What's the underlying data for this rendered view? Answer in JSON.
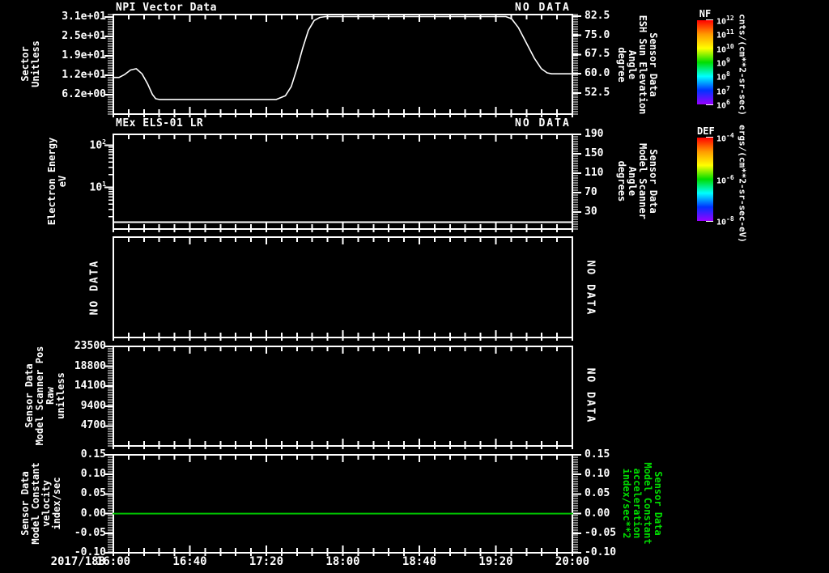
{
  "colors": {
    "background": "#000000",
    "foreground": "#ffffff",
    "accent_green": "#00dd00",
    "trace_green": "#00c000"
  },
  "xaxis": {
    "date_label": "2017/188",
    "start_hour": 16,
    "end_hour": 20,
    "tick_labels": [
      "16:00",
      "16:40",
      "17:20",
      "18:00",
      "18:40",
      "19:20",
      "20:00"
    ],
    "minor_per_major": 5
  },
  "chart_data": [
    {
      "panel": 1,
      "type": "line",
      "title": "NPI Vector Data",
      "status": "NO DATA",
      "left_label": "Sector\nUnitless",
      "right_label": "Sensor Data\nESH Sun Elevation\nAngle\ndegree",
      "left_axis": {
        "min": 0,
        "max": 31.78,
        "ticks": [
          {
            "v": 6.2,
            "t": "6.2e+00"
          },
          {
            "v": 12.4,
            "t": "1.2e+01"
          },
          {
            "v": 18.6,
            "t": "1.9e+01"
          },
          {
            "v": 24.8,
            "t": "2.5e+01"
          },
          {
            "v": 31.0,
            "t": "3.1e+01"
          }
        ]
      },
      "right_axis": {
        "min": 44.3,
        "max": 83.1,
        "ticks": [
          {
            "v": 52.5,
            "t": "52.5"
          },
          {
            "v": 60.0,
            "t": "60.0"
          },
          {
            "v": 67.5,
            "t": "67.5"
          },
          {
            "v": 75.0,
            "t": "75.0"
          },
          {
            "v": 82.5,
            "t": "82.5"
          }
        ]
      },
      "series": [
        {
          "name": "ESH Sun Elevation Angle",
          "axis": "right",
          "color": "#ffffff",
          "points": [
            [
              16.0,
              58.6
            ],
            [
              16.05,
              58.6
            ],
            [
              16.1,
              59.8
            ],
            [
              16.15,
              61.5
            ],
            [
              16.2,
              62.0
            ],
            [
              16.25,
              60.0
            ],
            [
              16.3,
              56.0
            ],
            [
              16.34,
              52.0
            ],
            [
              16.37,
              50.3
            ],
            [
              16.4,
              50.0
            ],
            [
              17.42,
              50.0
            ],
            [
              17.5,
              51.5
            ],
            [
              17.55,
              55.0
            ],
            [
              17.6,
              62.0
            ],
            [
              17.65,
              70.0
            ],
            [
              17.7,
              77.0
            ],
            [
              17.75,
              80.8
            ],
            [
              17.8,
              82.0
            ],
            [
              17.85,
              82.3
            ],
            [
              19.32,
              82.3
            ],
            [
              19.42,
              82.3
            ],
            [
              19.47,
              81.5
            ],
            [
              19.53,
              78.0
            ],
            [
              19.6,
              72.0
            ],
            [
              19.67,
              66.0
            ],
            [
              19.73,
              62.0
            ],
            [
              19.78,
              60.4
            ],
            [
              19.82,
              60.0
            ],
            [
              20.0,
              60.0
            ]
          ]
        }
      ]
    },
    {
      "panel": 2,
      "type": "spectrogram",
      "title": "MEx ELS-01 LR",
      "status": "NO DATA",
      "left_label": "Electron Energy\neV",
      "right_label": "Sensor Data\nModel Scanner\nAngle\ndegrees",
      "left_axis": {
        "scale": "log",
        "exp_min": 0.01,
        "exp_max": 2.26,
        "ticks": [
          {
            "exp": 1
          },
          {
            "exp": 2
          }
        ]
      },
      "right_axis": {
        "min": -5,
        "max": 190,
        "ticks": [
          {
            "v": 30,
            "t": "30"
          },
          {
            "v": 70,
            "t": "70"
          },
          {
            "v": 110,
            "t": "110"
          },
          {
            "v": 150,
            "t": "150"
          },
          {
            "v": 190,
            "t": "190"
          }
        ]
      },
      "series": [
        {
          "name": "baseline",
          "color": "#ffffff",
          "const_energy_ev": 1.5
        }
      ]
    },
    {
      "panel": 3,
      "type": "empty",
      "status_left": "NO DATA",
      "status_right": "NO DATA"
    },
    {
      "panel": 4,
      "type": "empty",
      "status_right": "NO DATA",
      "left_label": "Sensor Data\nModel Scanner Pos\nRaw\nunitless",
      "left_axis": {
        "min": 0,
        "max": 23500,
        "ticks": [
          {
            "v": 4700,
            "t": "4700"
          },
          {
            "v": 9400,
            "t": "9400"
          },
          {
            "v": 14100,
            "t": "14100"
          },
          {
            "v": 18800,
            "t": "18800"
          },
          {
            "v": 23500,
            "t": "23500"
          }
        ]
      }
    },
    {
      "panel": 5,
      "type": "line",
      "left_label": "Sensor Data\nModel Constant\nvelocity\nindex/sec",
      "right_label": "Sensor Data\nModel Constant\nacceleration\nindex/sec**2",
      "right_label_color": "#00dd00",
      "left_axis": {
        "min": -0.1,
        "max": 0.15,
        "ticks": [
          {
            "v": -0.1,
            "t": "-0.10"
          },
          {
            "v": -0.05,
            "t": "-0.05"
          },
          {
            "v": 0.0,
            "t": "0.00"
          },
          {
            "v": 0.05,
            "t": "0.05"
          },
          {
            "v": 0.1,
            "t": "0.10"
          },
          {
            "v": 0.15,
            "t": "0.15"
          }
        ]
      },
      "right_axis": {
        "min": -0.1,
        "max": 0.15,
        "ticks": [
          {
            "v": -0.1,
            "t": "-0.10"
          },
          {
            "v": -0.05,
            "t": "-0.05"
          },
          {
            "v": 0.0,
            "t": "0.00"
          },
          {
            "v": 0.05,
            "t": "0.05"
          },
          {
            "v": 0.1,
            "t": "0.10"
          },
          {
            "v": 0.15,
            "t": "0.15"
          }
        ]
      },
      "series": [
        {
          "name": "velocity",
          "axis": "left",
          "color": "#00c000",
          "points": [
            [
              16.0,
              0.0
            ],
            [
              20.0,
              0.0
            ]
          ]
        }
      ]
    }
  ],
  "colorbars": [
    {
      "title": "NF",
      "unit": "cnts/(cm**2-sr-sec)",
      "tick_exponents": [
        "12",
        "11",
        "10",
        "9",
        "8",
        "7",
        "6"
      ],
      "gradient": [
        "#ff0000",
        "#ff9900",
        "#ffff00",
        "#00dd00",
        "#00ffff",
        "#0033ff",
        "#9900ff"
      ]
    },
    {
      "title": "DEF",
      "unit": "ergs/(cm**2-sr-sec-eV)",
      "tick_exponents": [
        "-4",
        "-6",
        "-8"
      ],
      "gradient": [
        "#ff0000",
        "#ff9900",
        "#ffff00",
        "#00dd00",
        "#00ffff",
        "#0033ff",
        "#9900ff"
      ]
    }
  ]
}
